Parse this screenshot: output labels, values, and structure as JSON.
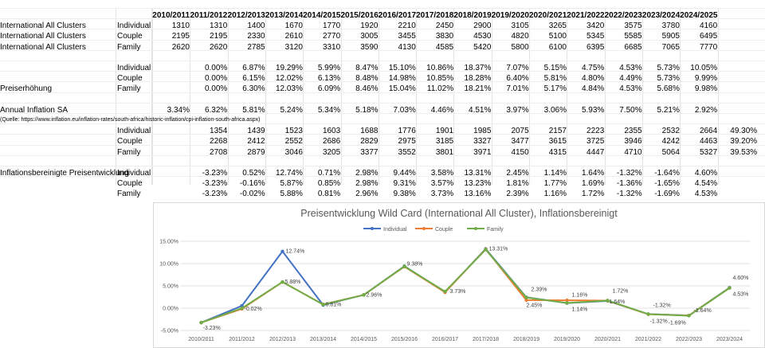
{
  "sheet": {
    "year_headers": [
      "2010/2011",
      "2011/2012",
      "2012/2013",
      "2013/2014",
      "2014/2015",
      "2015/2016",
      "2016/2017",
      "2017/2018",
      "2018/2019",
      "2019/2020",
      "2020/2021",
      "2021/2022",
      "2022/2023",
      "2023/2024",
      "2024/2025"
    ],
    "prices": {
      "rows": [
        {
          "label": "International All Clusters",
          "sub": "Individual",
          "values": [
            "1310",
            "1310",
            "1400",
            "1670",
            "1770",
            "1920",
            "2210",
            "2450",
            "2900",
            "3105",
            "3265",
            "3420",
            "3575",
            "3780",
            "4160"
          ]
        },
        {
          "label": "International All Clusters",
          "sub": "Couple",
          "values": [
            "2195",
            "2195",
            "2330",
            "2610",
            "2770",
            "3005",
            "3455",
            "3830",
            "4530",
            "4820",
            "5100",
            "5345",
            "5585",
            "5905",
            "6495"
          ]
        },
        {
          "label": "International All Clusters",
          "sub": "Family",
          "values": [
            "2620",
            "2620",
            "2785",
            "3120",
            "3310",
            "3590",
            "4130",
            "4585",
            "5420",
            "5800",
            "6100",
            "6395",
            "6685",
            "7065",
            "7770"
          ]
        }
      ]
    },
    "increase": {
      "rows": [
        {
          "label": "",
          "sub": "Individual",
          "values": [
            "",
            "0.00%",
            "6.87%",
            "19.29%",
            "5.99%",
            "8.47%",
            "15.10%",
            "10.86%",
            "18.37%",
            "7.07%",
            "5.15%",
            "4.75%",
            "4.53%",
            "5.73%",
            "10.05%"
          ]
        },
        {
          "label": "",
          "sub": "Couple",
          "values": [
            "",
            "0.00%",
            "6.15%",
            "12.02%",
            "6.13%",
            "8.48%",
            "14.98%",
            "10.85%",
            "18.28%",
            "6.40%",
            "5.81%",
            "4.80%",
            "4.49%",
            "5.73%",
            "9.99%"
          ]
        },
        {
          "label": "Preiserhöhung",
          "sub": "Family",
          "values": [
            "",
            "0.00%",
            "6.30%",
            "12.03%",
            "6.09%",
            "8.46%",
            "15.04%",
            "11.02%",
            "18.21%",
            "7.01%",
            "5.17%",
            "4.84%",
            "4.53%",
            "5.68%",
            "9.98%"
          ]
        }
      ]
    },
    "inflation": {
      "label": "Annual Inflation SA",
      "values": [
        "3.34%",
        "6.32%",
        "5.81%",
        "5.24%",
        "5.34%",
        "5.18%",
        "7.03%",
        "4.46%",
        "4.51%",
        "3.97%",
        "3.06%",
        "5.93%",
        "7.50%",
        "5.21%",
        "2.92%"
      ],
      "source": "(Quelle: https://www.inflation.eu/inflation-rates/south-africa/historic-inflation/cpi-inflation-south-africa.aspx)"
    },
    "adjusted_prices": {
      "rows": [
        {
          "sub": "Individual",
          "values": [
            "",
            "1354",
            "1439",
            "1523",
            "1603",
            "1688",
            "1776",
            "1901",
            "1985",
            "2075",
            "2157",
            "2223",
            "2355",
            "2532",
            "2664"
          ],
          "extra": "49.30%"
        },
        {
          "sub": "Couple",
          "values": [
            "",
            "2268",
            "2412",
            "2552",
            "2686",
            "2829",
            "2975",
            "3185",
            "3327",
            "3477",
            "3615",
            "3725",
            "3946",
            "4242",
            "4463"
          ],
          "extra": "39.20%"
        },
        {
          "sub": "Family",
          "values": [
            "",
            "2708",
            "2879",
            "3046",
            "3205",
            "3377",
            "3552",
            "3801",
            "3971",
            "4150",
            "4315",
            "4447",
            "4710",
            "5064",
            "5327"
          ],
          "extra": "39.53%"
        }
      ]
    },
    "real_development": {
      "label": "Inflationsbereinigte Preisentwicklung",
      "rows": [
        {
          "sub": "Individual",
          "values": [
            "",
            "-3.23%",
            "0.52%",
            "12.74%",
            "0.71%",
            "2.98%",
            "9.44%",
            "3.58%",
            "13.31%",
            "2.45%",
            "1.14%",
            "1.64%",
            "-1.32%",
            "-1.64%",
            "4.60%"
          ]
        },
        {
          "sub": "Couple",
          "values": [
            "",
            "-3.23%",
            "-0.16%",
            "5.87%",
            "0.85%",
            "2.98%",
            "9.31%",
            "3.57%",
            "13.23%",
            "1.81%",
            "1.77%",
            "1.69%",
            "-1.36%",
            "-1.65%",
            "4.54%"
          ]
        },
        {
          "sub": "Family",
          "values": [
            "",
            "-3.23%",
            "-0.02%",
            "5.88%",
            "0.81%",
            "2.96%",
            "9.38%",
            "3.73%",
            "13.16%",
            "2.39%",
            "1.16%",
            "1.72%",
            "-1.32%",
            "-1.69%",
            "4.53%"
          ]
        }
      ]
    }
  },
  "chart_data": {
    "type": "line",
    "title": "Preisentwicklung Wild Card (International All Cluster), Inflationsbereinigt",
    "categories": [
      "2010/2011",
      "2011/2012",
      "2012/2013",
      "2013/2014",
      "2014/2015",
      "2015/2016",
      "2016/2017",
      "2017/2018",
      "2018/2019",
      "2019/2020",
      "2020/2021",
      "2021/2022",
      "2022/2023",
      "2023/2024"
    ],
    "series": [
      {
        "name": "Individual",
        "color": "#4472c4",
        "values": [
          -3.23,
          0.52,
          12.74,
          0.71,
          2.98,
          9.44,
          3.58,
          13.31,
          2.45,
          1.14,
          1.64,
          -1.32,
          -1.64,
          4.6
        ]
      },
      {
        "name": "Couple",
        "color": "#ed7d31",
        "values": [
          -3.23,
          -0.16,
          5.87,
          0.85,
          2.98,
          9.31,
          3.57,
          13.23,
          1.81,
          1.77,
          1.69,
          -1.36,
          -1.65,
          4.54
        ]
      },
      {
        "name": "Family",
        "color": "#70ad47",
        "values": [
          -3.23,
          -0.02,
          5.88,
          0.81,
          2.96,
          9.38,
          3.73,
          13.16,
          2.39,
          1.16,
          1.72,
          -1.32,
          -1.69,
          4.53
        ]
      }
    ],
    "ylim": [
      -5,
      15
    ],
    "ytick_labels": [
      "-5.00%",
      "0.00%",
      "5.00%",
      "10.00%",
      "15.00%"
    ],
    "grid": true,
    "legend": "top",
    "data_labels": [
      {
        "text": "-3.23%"
      },
      {
        "text": "-0.02%"
      },
      {
        "text": "12.74%"
      },
      {
        "text": "5.88%"
      },
      {
        "text": "0.81%"
      },
      {
        "text": "2.96%"
      },
      {
        "text": "9.38%"
      },
      {
        "text": "3.73%"
      },
      {
        "text": "13.31%"
      },
      {
        "text": "2.39%"
      },
      {
        "text": "2.45%"
      },
      {
        "text": "1.16%"
      },
      {
        "text": "1.14%"
      },
      {
        "text": "1.72%"
      },
      {
        "text": "1.64%"
      },
      {
        "text": "-1.32%"
      },
      {
        "text": "-1.32%"
      },
      {
        "text": "-1.69%"
      },
      {
        "text": "-1.64%"
      },
      {
        "text": "4.60%"
      },
      {
        "text": "4.53%"
      }
    ]
  }
}
